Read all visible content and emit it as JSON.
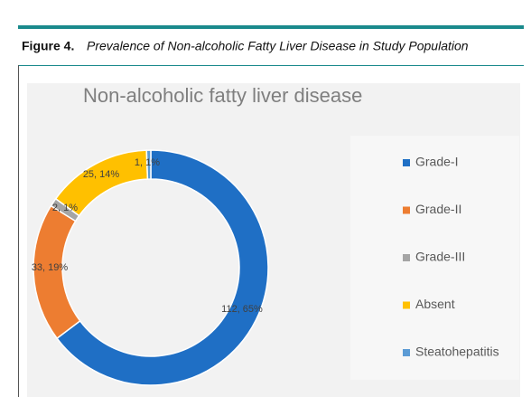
{
  "figure": {
    "label": "Figure 4.",
    "caption": "Prevalence of Non-alcoholic Fatty Liver Disease in Study Population"
  },
  "chart_data": {
    "type": "donut",
    "title": "Non-alcoholic fatty liver disease",
    "categories": [
      "Grade-I",
      "Grade-II",
      "Grade-III",
      "Absent",
      "Steatohepatitis"
    ],
    "values": [
      112,
      33,
      2,
      25,
      1
    ],
    "value_labels": [
      "112, 65%",
      "33, 19%",
      "2, 1%",
      "25, 14%",
      "1, 1%"
    ],
    "colors": [
      "#1f6fc5",
      "#ed7d31",
      "#a5a5a5",
      "#ffc000",
      "#5b9bd5"
    ],
    "legend": "right"
  }
}
